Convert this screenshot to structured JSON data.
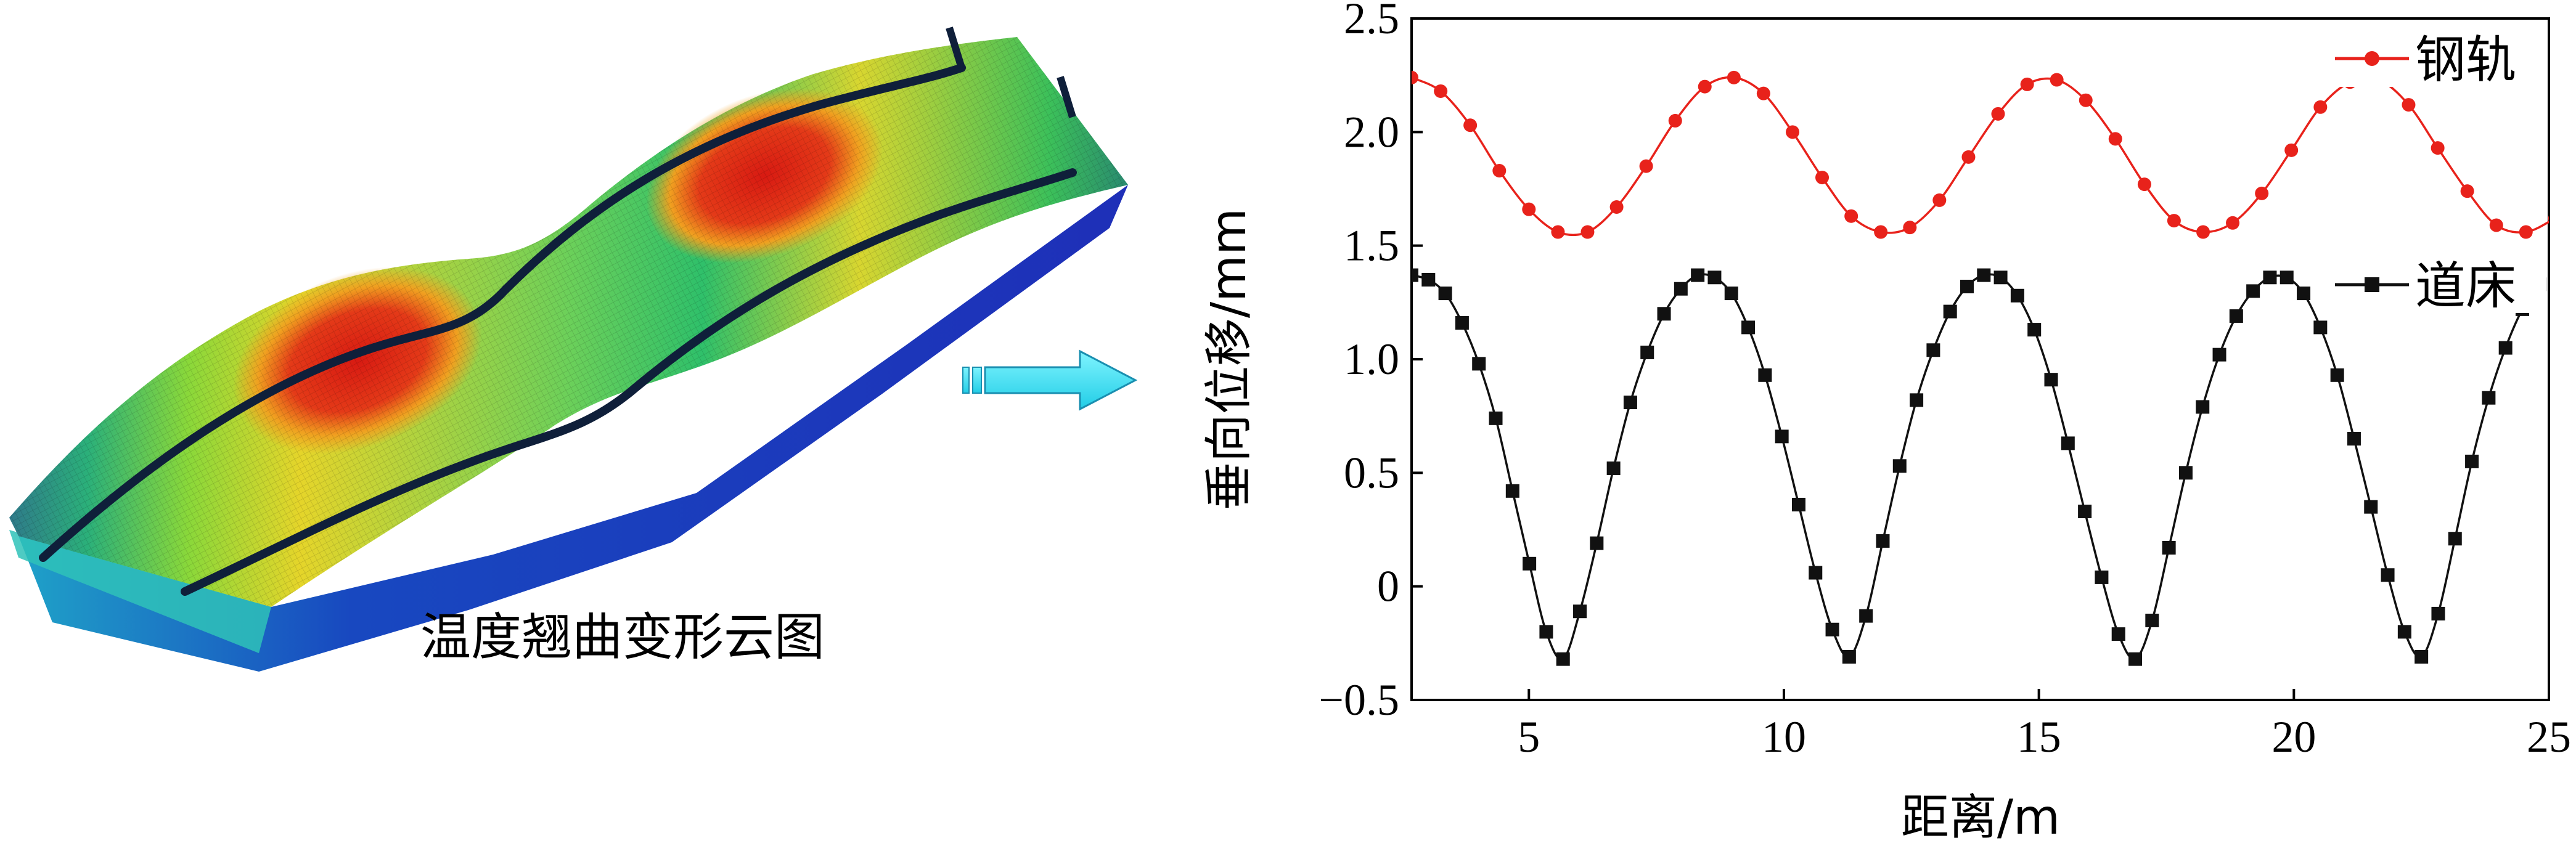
{
  "left_panel": {
    "caption": "温度翘曲变形云图",
    "contour_colors": [
      "#1830c8",
      "#1ea0d8",
      "#3cd07a",
      "#cfe02a",
      "#f08a1c",
      "#e02010"
    ]
  },
  "arrow": {
    "color": "#2fe0f0",
    "outline": "#1a8fb0"
  },
  "chart_data": {
    "type": "line",
    "xlabel": "距离/m",
    "ylabel": "垂向位移/mm",
    "xlim": [
      2.7,
      25
    ],
    "ylim": [
      -0.5,
      2.5
    ],
    "xticks": [
      5,
      10,
      15,
      20,
      25
    ],
    "yticks": [
      -0.5,
      0,
      0.5,
      1.0,
      1.5,
      2.0,
      2.5
    ],
    "ytick_labels": [
      "−0.5",
      "0",
      "0.5",
      "1.0",
      "1.5",
      "2.0",
      "2.5"
    ],
    "grid": false,
    "series": [
      {
        "name": "钢轨",
        "color": "#e8221b",
        "marker": "circle",
        "x": [
          2.7,
          3.27,
          3.85,
          4.42,
          5.0,
          5.57,
          6.15,
          6.72,
          7.3,
          7.87,
          8.45,
          9.02,
          9.6,
          10.17,
          10.75,
          11.32,
          11.9,
          12.47,
          13.05,
          13.62,
          14.2,
          14.77,
          15.35,
          15.92,
          16.5,
          17.07,
          17.65,
          18.22,
          18.8,
          19.37,
          19.95,
          20.52,
          21.1,
          21.67,
          22.25,
          22.82,
          23.4,
          23.97,
          24.55,
          25.12
        ],
        "y": [
          2.24,
          2.18,
          2.03,
          1.83,
          1.66,
          1.56,
          1.56,
          1.67,
          1.85,
          2.05,
          2.2,
          2.24,
          2.17,
          2.0,
          1.8,
          1.63,
          1.56,
          1.58,
          1.7,
          1.89,
          2.08,
          2.21,
          2.23,
          2.14,
          1.97,
          1.77,
          1.61,
          1.56,
          1.6,
          1.73,
          1.92,
          2.11,
          2.22,
          2.23,
          2.12,
          1.93,
          1.74,
          1.59,
          1.56,
          1.62
        ]
      },
      {
        "name": "道床",
        "color": "#111111",
        "marker": "square",
        "x": [
          2.7,
          3.03,
          3.36,
          3.69,
          4.02,
          4.35,
          4.68,
          5.01,
          5.34,
          5.67,
          6.0,
          6.33,
          6.66,
          6.99,
          7.32,
          7.65,
          7.98,
          8.31,
          8.64,
          8.97,
          9.3,
          9.63,
          9.96,
          10.29,
          10.62,
          10.95,
          11.28,
          11.61,
          11.94,
          12.27,
          12.6,
          12.93,
          13.26,
          13.59,
          13.92,
          14.25,
          14.58,
          14.91,
          15.24,
          15.57,
          15.9,
          16.23,
          16.56,
          16.89,
          17.22,
          17.55,
          17.88,
          18.21,
          18.54,
          18.87,
          19.2,
          19.53,
          19.86,
          20.19,
          20.52,
          20.85,
          21.18,
          21.51,
          21.84,
          22.17,
          22.5,
          22.83,
          23.16,
          23.49,
          23.82,
          24.15,
          24.48,
          24.81
        ],
        "y": [
          1.37,
          1.35,
          1.29,
          1.16,
          0.98,
          0.74,
          0.42,
          0.1,
          -0.2,
          -0.32,
          -0.11,
          0.19,
          0.52,
          0.81,
          1.03,
          1.2,
          1.31,
          1.37,
          1.36,
          1.29,
          1.14,
          0.93,
          0.66,
          0.36,
          0.06,
          -0.19,
          -0.31,
          -0.13,
          0.2,
          0.53,
          0.82,
          1.04,
          1.21,
          1.32,
          1.37,
          1.36,
          1.28,
          1.13,
          0.91,
          0.63,
          0.33,
          0.04,
          -0.21,
          -0.32,
          -0.15,
          0.17,
          0.5,
          0.79,
          1.02,
          1.19,
          1.3,
          1.36,
          1.36,
          1.29,
          1.14,
          0.93,
          0.65,
          0.35,
          0.05,
          -0.2,
          -0.31,
          -0.12,
          0.21,
          0.55,
          0.83,
          1.05,
          1.22,
          1.33
        ]
      }
    ]
  }
}
